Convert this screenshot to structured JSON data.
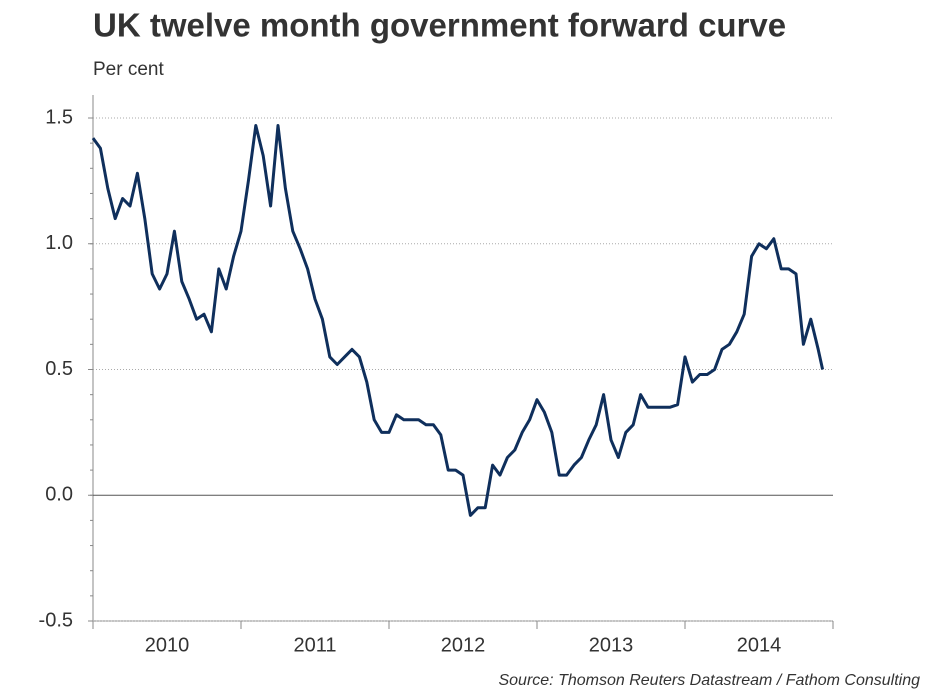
{
  "chart_data": {
    "type": "line",
    "title": "UK twelve month government forward curve",
    "subtitle": "Per cent",
    "source": "Source: Thomson Reuters Datastream / Fathom Consulting",
    "x": [
      2010.0,
      2010.05,
      2010.1,
      2010.15,
      2010.2,
      2010.25,
      2010.3,
      2010.35,
      2010.4,
      2010.45,
      2010.5,
      2010.55,
      2010.6,
      2010.65,
      2010.7,
      2010.75,
      2010.8,
      2010.85,
      2010.9,
      2010.95,
      2011.0,
      2011.05,
      2011.1,
      2011.15,
      2011.2,
      2011.25,
      2011.3,
      2011.35,
      2011.4,
      2011.45,
      2011.5,
      2011.55,
      2011.6,
      2011.65,
      2011.7,
      2011.75,
      2011.8,
      2011.85,
      2011.9,
      2011.95,
      2012.0,
      2012.05,
      2012.1,
      2012.15,
      2012.2,
      2012.25,
      2012.3,
      2012.35,
      2012.4,
      2012.45,
      2012.5,
      2012.55,
      2012.6,
      2012.65,
      2012.7,
      2012.75,
      2012.8,
      2012.85,
      2012.9,
      2012.95,
      2013.0,
      2013.05,
      2013.1,
      2013.15,
      2013.2,
      2013.25,
      2013.3,
      2013.35,
      2013.4,
      2013.45,
      2013.5,
      2013.55,
      2013.6,
      2013.65,
      2013.7,
      2013.75,
      2013.8,
      2013.85,
      2013.9,
      2013.95,
      2014.0,
      2014.05,
      2014.1,
      2014.15,
      2014.2,
      2014.25,
      2014.3,
      2014.35,
      2014.4,
      2014.45,
      2014.5,
      2014.55,
      2014.6,
      2014.65,
      2014.7,
      2014.75,
      2014.8,
      2014.85,
      2014.9,
      2014.93
    ],
    "series": [
      {
        "color": "#0f2f5c",
        "values": [
          1.42,
          1.38,
          1.22,
          1.1,
          1.18,
          1.15,
          1.28,
          1.1,
          0.88,
          0.82,
          0.88,
          1.05,
          0.85,
          0.78,
          0.7,
          0.72,
          0.65,
          0.9,
          0.82,
          0.95,
          1.05,
          1.25,
          1.47,
          1.35,
          1.15,
          1.47,
          1.22,
          1.05,
          0.98,
          0.9,
          0.78,
          0.7,
          0.55,
          0.52,
          0.55,
          0.58,
          0.55,
          0.45,
          0.3,
          0.25,
          0.25,
          0.32,
          0.3,
          0.3,
          0.3,
          0.28,
          0.28,
          0.24,
          0.1,
          0.1,
          0.08,
          -0.08,
          -0.05,
          -0.05,
          0.12,
          0.08,
          0.15,
          0.18,
          0.25,
          0.3,
          0.38,
          0.33,
          0.25,
          0.08,
          0.08,
          0.12,
          0.15,
          0.22,
          0.28,
          0.4,
          0.22,
          0.15,
          0.25,
          0.28,
          0.4,
          0.35,
          0.35,
          0.35,
          0.35,
          0.36,
          0.55,
          0.45,
          0.48,
          0.48,
          0.5,
          0.58,
          0.6,
          0.65,
          0.72,
          0.95,
          1.0,
          0.98,
          1.02,
          0.9,
          0.9,
          0.88,
          0.6,
          0.7,
          0.58,
          0.5
        ]
      }
    ],
    "xlim": [
      2010,
      2015
    ],
    "xticks": [
      {
        "value": 2010.5,
        "label": "2010"
      },
      {
        "value": 2011.5,
        "label": "2011"
      },
      {
        "value": 2012.5,
        "label": "2012"
      },
      {
        "value": 2013.5,
        "label": "2013"
      },
      {
        "value": 2014.5,
        "label": "2014"
      }
    ],
    "ylim": [
      -0.5,
      1.5
    ],
    "yticks": [
      {
        "value": -0.5,
        "label": "-0.5"
      },
      {
        "value": 0,
        "label": "0.0"
      },
      {
        "value": 0.5,
        "label": "0.5"
      },
      {
        "value": 1,
        "label": "1.0"
      },
      {
        "value": 1.5,
        "label": "1.5"
      }
    ],
    "grid": true
  }
}
